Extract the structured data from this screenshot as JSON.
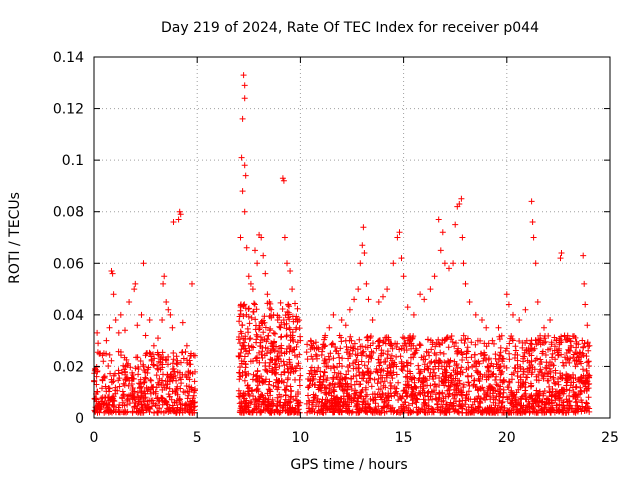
{
  "chart_data": {
    "type": "scatter",
    "title": "Day 219 of 2024, Rate Of TEC Index for receiver p044",
    "xlabel": "GPS time / hours",
    "ylabel": "ROTI / TECUs",
    "xlim": [
      0,
      25
    ],
    "ylim": [
      0,
      0.14
    ],
    "xticks": [
      0,
      5,
      10,
      15,
      20,
      25
    ],
    "yticks": [
      0,
      0.02,
      0.04,
      0.06,
      0.08,
      0.1,
      0.12,
      0.14
    ],
    "ytick_labels": [
      "0",
      "0.02",
      "0.04",
      "0.06",
      "0.08",
      "0.1",
      "0.12",
      "0.14"
    ],
    "xtick_labels": [
      "0",
      "5",
      "10",
      "15",
      "20",
      "25"
    ],
    "grid": true,
    "marker": "+",
    "color": "#ff0000",
    "data_gaps_hours": [
      [
        4.9,
        7.0
      ],
      [
        10.0,
        10.3
      ]
    ],
    "series": [
      {
        "name": "ROTI",
        "points": [
          [
            0.15,
            0.033
          ],
          [
            0.2,
            0.029
          ],
          [
            0.3,
            0.025
          ],
          [
            0.45,
            0.022
          ],
          [
            0.6,
            0.03
          ],
          [
            0.75,
            0.035
          ],
          [
            0.85,
            0.057
          ],
          [
            0.9,
            0.056
          ],
          [
            0.95,
            0.048
          ],
          [
            1.05,
            0.038
          ],
          [
            1.2,
            0.033
          ],
          [
            1.3,
            0.04
          ],
          [
            1.5,
            0.034
          ],
          [
            1.7,
            0.045
          ],
          [
            1.95,
            0.05
          ],
          [
            2.0,
            0.052
          ],
          [
            2.1,
            0.036
          ],
          [
            2.3,
            0.04
          ],
          [
            2.4,
            0.06
          ],
          [
            2.5,
            0.032
          ],
          [
            2.7,
            0.038
          ],
          [
            2.9,
            0.028
          ],
          [
            3.1,
            0.031
          ],
          [
            3.3,
            0.038
          ],
          [
            3.35,
            0.052
          ],
          [
            3.4,
            0.055
          ],
          [
            3.5,
            0.045
          ],
          [
            3.6,
            0.042
          ],
          [
            3.7,
            0.04
          ],
          [
            3.8,
            0.035
          ],
          [
            3.85,
            0.076
          ],
          [
            4.1,
            0.077
          ],
          [
            4.15,
            0.08
          ],
          [
            4.2,
            0.079
          ],
          [
            4.3,
            0.037
          ],
          [
            4.5,
            0.028
          ],
          [
            4.7,
            0.025
          ],
          [
            4.75,
            0.052
          ],
          [
            7.1,
            0.07
          ],
          [
            7.15,
            0.101
          ],
          [
            7.2,
            0.088
          ],
          [
            7.25,
            0.133
          ],
          [
            7.3,
            0.129
          ],
          [
            7.3,
            0.124
          ],
          [
            7.2,
            0.116
          ],
          [
            7.3,
            0.098
          ],
          [
            7.35,
            0.094
          ],
          [
            7.3,
            0.08
          ],
          [
            7.4,
            0.066
          ],
          [
            7.5,
            0.055
          ],
          [
            7.6,
            0.052
          ],
          [
            7.7,
            0.05
          ],
          [
            7.8,
            0.065
          ],
          [
            7.9,
            0.06
          ],
          [
            8.0,
            0.071
          ],
          [
            8.1,
            0.07
          ],
          [
            8.2,
            0.063
          ],
          [
            8.3,
            0.056
          ],
          [
            8.4,
            0.048
          ],
          [
            8.5,
            0.045
          ],
          [
            8.7,
            0.04
          ],
          [
            8.9,
            0.038
          ],
          [
            9.15,
            0.093
          ],
          [
            9.2,
            0.092
          ],
          [
            9.25,
            0.07
          ],
          [
            9.35,
            0.06
          ],
          [
            9.5,
            0.057
          ],
          [
            9.6,
            0.05
          ],
          [
            9.8,
            0.035
          ],
          [
            10.0,
            0.03
          ],
          [
            10.5,
            0.03
          ],
          [
            10.8,
            0.024
          ],
          [
            11.2,
            0.032
          ],
          [
            11.4,
            0.035
          ],
          [
            11.6,
            0.04
          ],
          [
            11.9,
            0.032
          ],
          [
            12.0,
            0.038
          ],
          [
            12.2,
            0.036
          ],
          [
            12.4,
            0.042
          ],
          [
            12.6,
            0.046
          ],
          [
            12.8,
            0.05
          ],
          [
            12.9,
            0.06
          ],
          [
            13.0,
            0.067
          ],
          [
            13.05,
            0.074
          ],
          [
            13.1,
            0.064
          ],
          [
            13.2,
            0.052
          ],
          [
            13.3,
            0.046
          ],
          [
            13.5,
            0.038
          ],
          [
            13.8,
            0.045
          ],
          [
            14.0,
            0.047
          ],
          [
            14.2,
            0.05
          ],
          [
            14.5,
            0.06
          ],
          [
            14.7,
            0.07
          ],
          [
            14.8,
            0.072
          ],
          [
            14.9,
            0.062
          ],
          [
            15.0,
            0.055
          ],
          [
            15.2,
            0.043
          ],
          [
            15.5,
            0.04
          ],
          [
            15.8,
            0.048
          ],
          [
            16.0,
            0.046
          ],
          [
            16.3,
            0.05
          ],
          [
            16.5,
            0.055
          ],
          [
            16.7,
            0.077
          ],
          [
            16.8,
            0.065
          ],
          [
            16.9,
            0.072
          ],
          [
            17.0,
            0.06
          ],
          [
            17.2,
            0.058
          ],
          [
            17.4,
            0.06
          ],
          [
            17.5,
            0.075
          ],
          [
            17.6,
            0.082
          ],
          [
            17.7,
            0.083
          ],
          [
            17.8,
            0.085
          ],
          [
            17.85,
            0.07
          ],
          [
            17.9,
            0.06
          ],
          [
            18.0,
            0.052
          ],
          [
            18.2,
            0.045
          ],
          [
            18.5,
            0.04
          ],
          [
            18.8,
            0.038
          ],
          [
            19.0,
            0.035
          ],
          [
            19.3,
            0.03
          ],
          [
            19.6,
            0.035
          ],
          [
            20.0,
            0.048
          ],
          [
            20.1,
            0.044
          ],
          [
            20.3,
            0.04
          ],
          [
            20.6,
            0.038
          ],
          [
            20.9,
            0.042
          ],
          [
            21.2,
            0.084
          ],
          [
            21.25,
            0.076
          ],
          [
            21.3,
            0.07
          ],
          [
            21.4,
            0.06
          ],
          [
            21.5,
            0.045
          ],
          [
            21.8,
            0.035
          ],
          [
            22.1,
            0.038
          ],
          [
            22.4,
            0.03
          ],
          [
            22.6,
            0.062
          ],
          [
            22.65,
            0.064
          ],
          [
            22.8,
            0.032
          ],
          [
            23.1,
            0.028
          ],
          [
            23.4,
            0.025
          ],
          [
            23.7,
            0.063
          ],
          [
            23.75,
            0.052
          ],
          [
            23.8,
            0.044
          ],
          [
            23.9,
            0.036
          ],
          [
            24.0,
            0.028
          ]
        ]
      }
    ],
    "background_bands": [
      {
        "x0": 0.0,
        "x1": 4.9,
        "min": 0.002,
        "max": 0.026,
        "density": 520
      },
      {
        "x0": 7.0,
        "x1": 10.0,
        "min": 0.002,
        "max": 0.045,
        "density": 520
      },
      {
        "x0": 10.3,
        "x1": 24.0,
        "min": 0.002,
        "max": 0.032,
        "density": 1800
      }
    ]
  }
}
